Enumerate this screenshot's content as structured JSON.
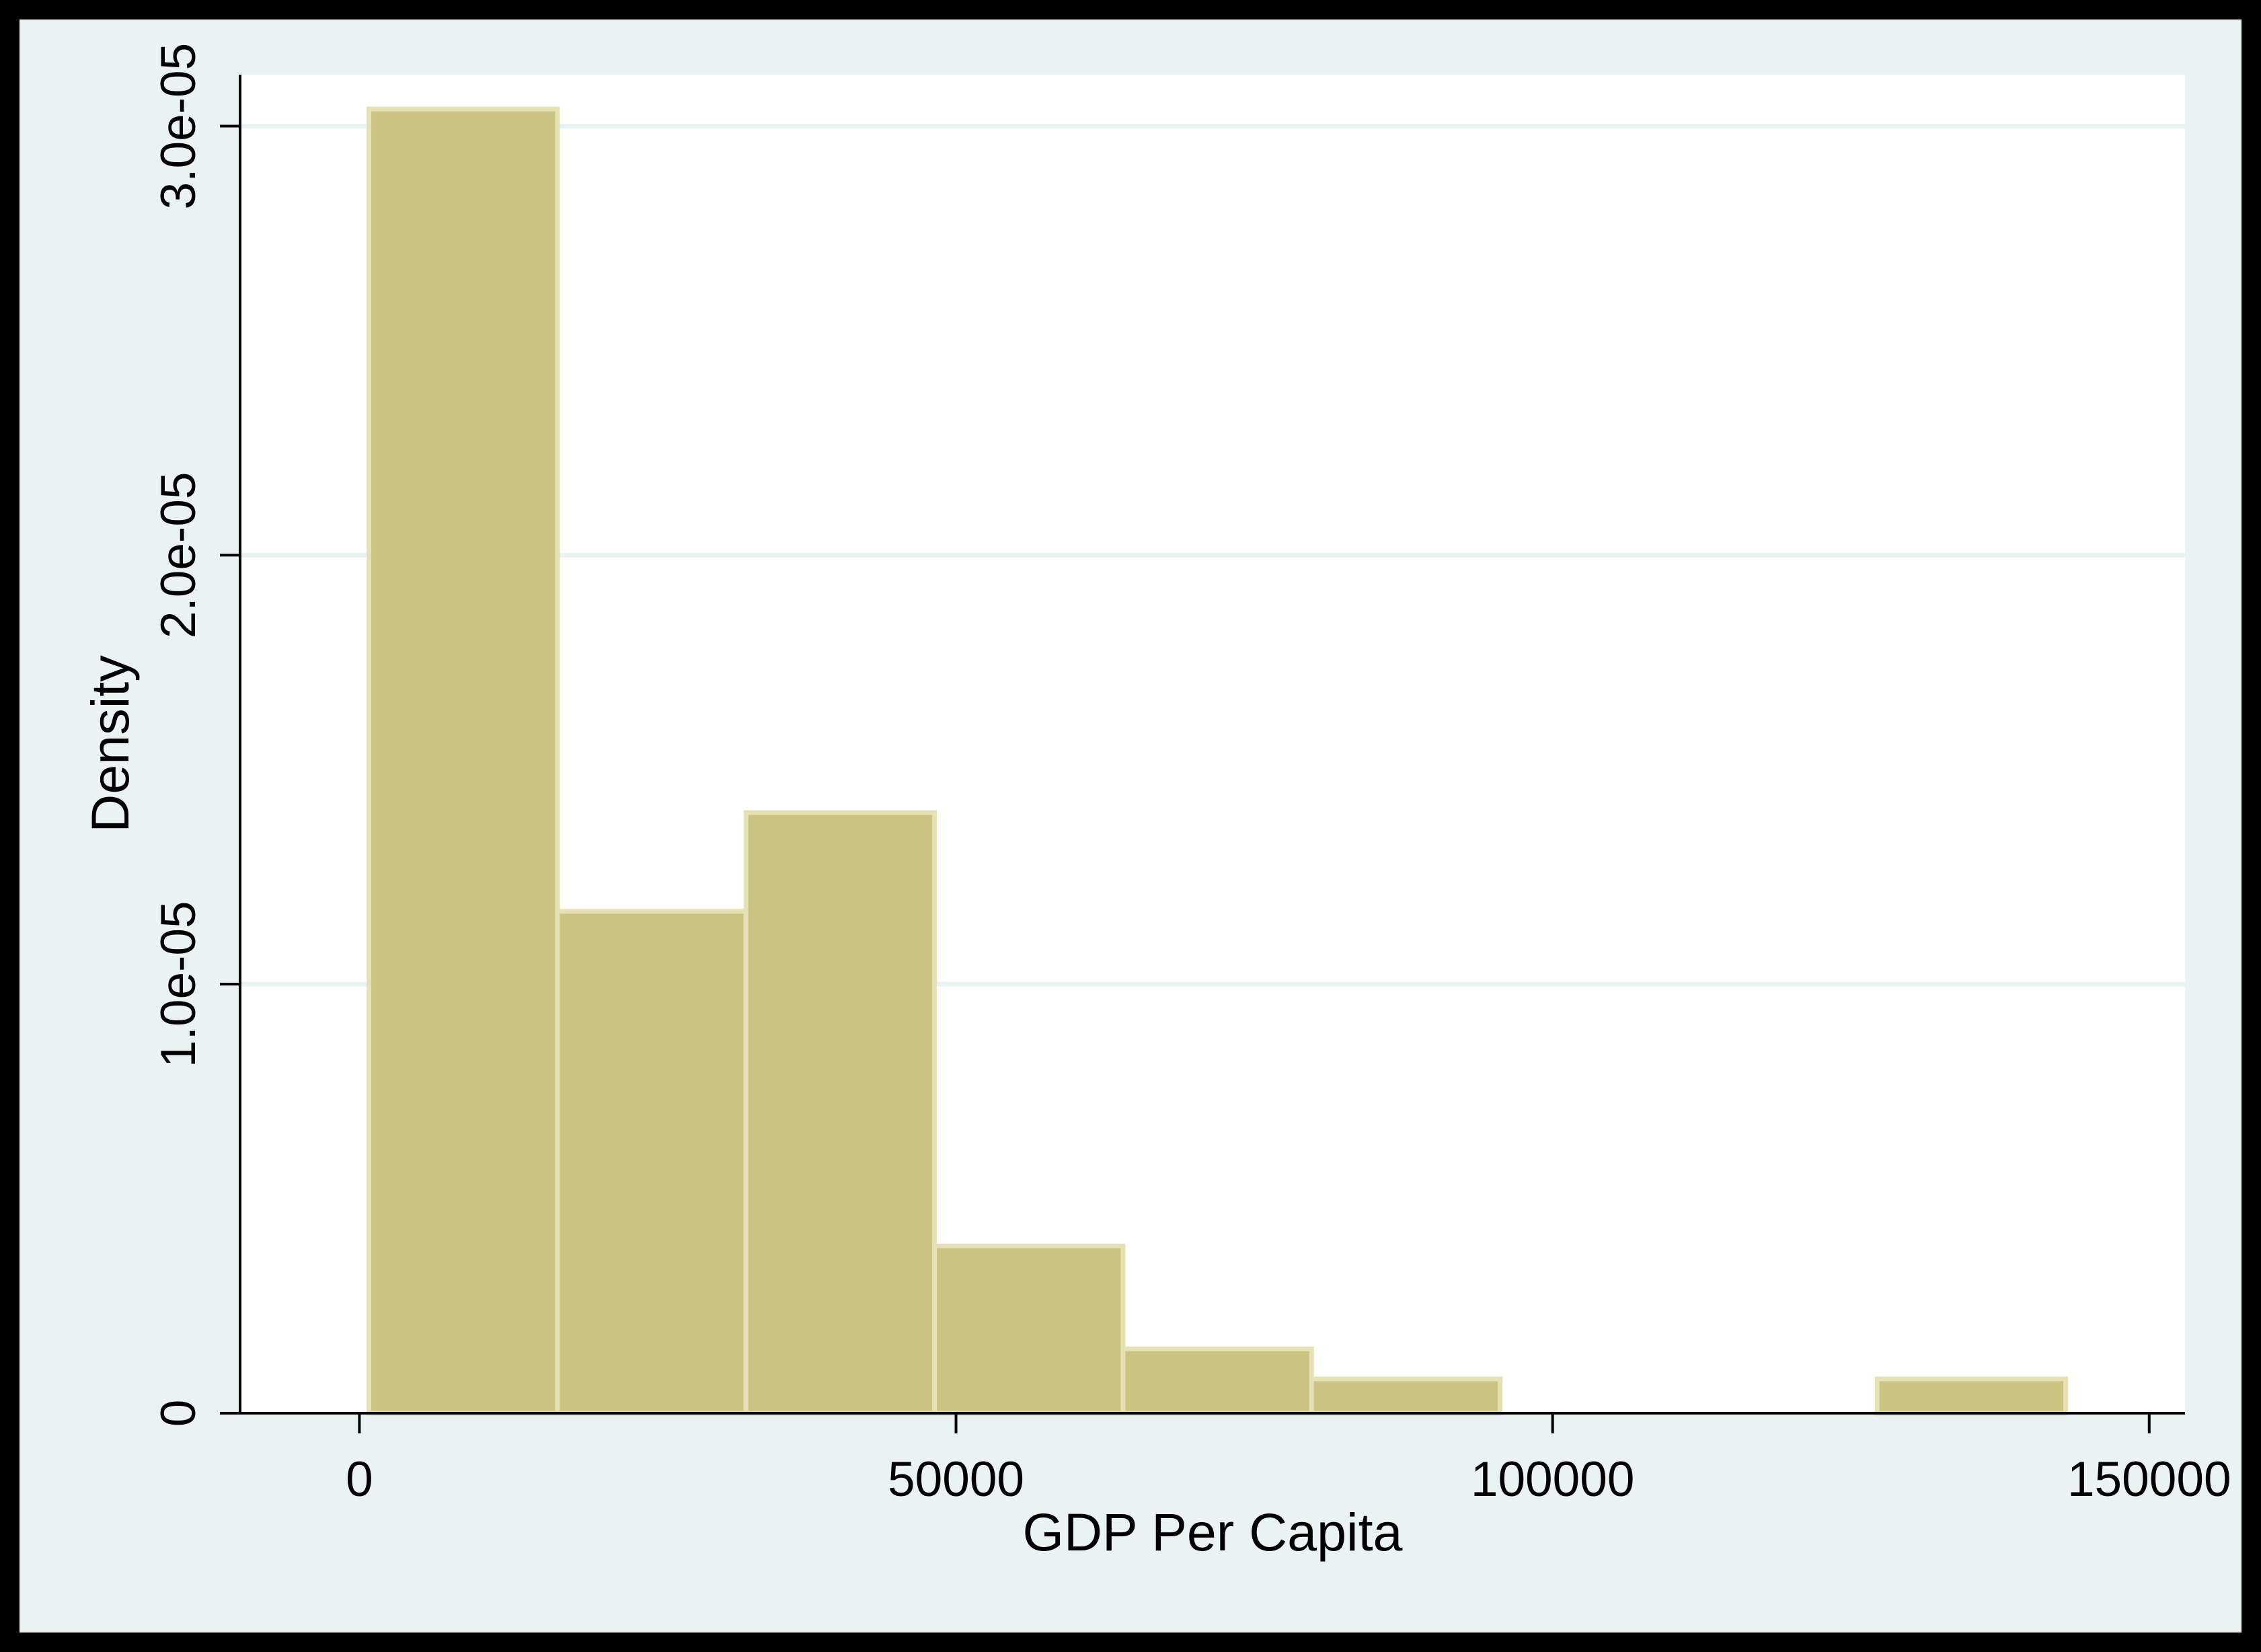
{
  "chart_data": {
    "type": "bar",
    "subtype": "histogram",
    "title": "",
    "xlabel": "GDP Per Capita",
    "ylabel": "Density",
    "xlim": [
      -10000,
      153000
    ],
    "ylim": [
      0,
      3.12e-05
    ],
    "grid": true,
    "legend": "none",
    "x_ticks": [
      {
        "value": 0,
        "label": "0"
      },
      {
        "value": 50000,
        "label": "50000"
      },
      {
        "value": 100000,
        "label": "100000"
      },
      {
        "value": 150000,
        "label": "150000"
      }
    ],
    "y_ticks": [
      {
        "value": 0,
        "label": "0"
      },
      {
        "value": 1e-05,
        "label": "1.0e-05"
      },
      {
        "value": 2e-05,
        "label": "2.0e-05"
      },
      {
        "value": 3e-05,
        "label": "3.0e-05"
      }
    ],
    "bins": [
      {
        "x0": 800,
        "x1": 16600,
        "value": 3.04e-05
      },
      {
        "x0": 16600,
        "x1": 32400,
        "value": 1.17e-05
      },
      {
        "x0": 32400,
        "x1": 48200,
        "value": 1.4e-05
      },
      {
        "x0": 48200,
        "x1": 64000,
        "value": 3.9e-06
      },
      {
        "x0": 64000,
        "x1": 79800,
        "value": 1.5e-06
      },
      {
        "x0": 79800,
        "x1": 95600,
        "value": 8e-07
      },
      {
        "x0": 127200,
        "x1": 143000,
        "value": 8e-07
      }
    ],
    "colors": {
      "bar_fill": "#cbc382",
      "bar_stroke": "#e6e1b4",
      "plot_background": "#ffffff",
      "outer_background": "#eaf2f3",
      "gridline": "#eaf2f3",
      "axis": "#000000"
    }
  }
}
